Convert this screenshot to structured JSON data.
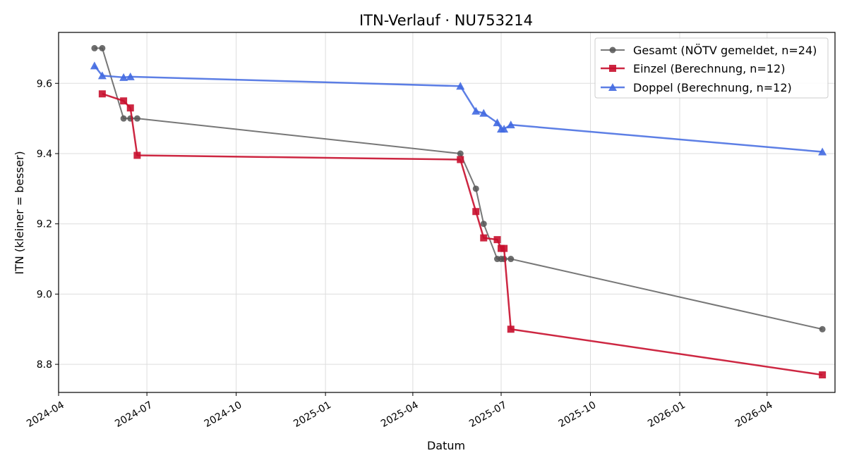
{
  "chart_data": {
    "type": "line",
    "title": "ITN-Verlauf · NU753214",
    "xlabel": "Datum",
    "ylabel": "ITN  (kleiner = besser)",
    "x_axis": "date",
    "xlim": [
      "2024-04-01",
      "2026-06-10"
    ],
    "ylim": [
      8.72,
      9.745
    ],
    "xticks": [
      "2024-04",
      "2024-07",
      "2024-10",
      "2025-01",
      "2025-04",
      "2025-07",
      "2025-10",
      "2026-01",
      "2026-04"
    ],
    "yticks": [
      8.8,
      9.0,
      9.2,
      9.4,
      9.6
    ],
    "yticks_labels": [
      "8.8",
      "9.0",
      "9.2",
      "9.4",
      "9.6"
    ],
    "grid": true,
    "legend_position": "top-right",
    "series": [
      {
        "name": "Gesamt (NÖTV gemeldet, n=24)",
        "color": "#555555",
        "marker": "circle",
        "points": [
          {
            "x": "2024-05-08",
            "y": 9.7
          },
          {
            "x": "2024-05-16",
            "y": 9.7
          },
          {
            "x": "2024-06-07",
            "y": 9.5
          },
          {
            "x": "2024-06-14",
            "y": 9.5
          },
          {
            "x": "2024-06-21",
            "y": 9.5
          },
          {
            "x": "2025-05-20",
            "y": 9.4
          },
          {
            "x": "2025-06-05",
            "y": 9.3
          },
          {
            "x": "2025-06-13",
            "y": 9.2
          },
          {
            "x": "2025-06-27",
            "y": 9.1
          },
          {
            "x": "2025-07-01",
            "y": 9.1
          },
          {
            "x": "2025-07-04",
            "y": 9.1
          },
          {
            "x": "2025-07-11",
            "y": 9.1
          },
          {
            "x": "2026-05-28",
            "y": 8.9
          }
        ]
      },
      {
        "name": "Einzel (Berechnung, n=12)",
        "color": "#c8102e",
        "marker": "square",
        "points": [
          {
            "x": "2024-05-16",
            "y": 9.57
          },
          {
            "x": "2024-06-07",
            "y": 9.55
          },
          {
            "x": "2024-06-14",
            "y": 9.53
          },
          {
            "x": "2024-06-21",
            "y": 9.395
          },
          {
            "x": "2025-05-20",
            "y": 9.383
          },
          {
            "x": "2025-06-05",
            "y": 9.235
          },
          {
            "x": "2025-06-13",
            "y": 9.16
          },
          {
            "x": "2025-06-27",
            "y": 9.155
          },
          {
            "x": "2025-07-01",
            "y": 9.13
          },
          {
            "x": "2025-07-04",
            "y": 9.13
          },
          {
            "x": "2025-07-11",
            "y": 8.9
          },
          {
            "x": "2026-05-28",
            "y": 8.77
          }
        ]
      },
      {
        "name": "Doppel (Berechnung, n=12)",
        "color": "#4169e1",
        "marker": "triangle",
        "points": [
          {
            "x": "2024-05-08",
            "y": 9.65
          },
          {
            "x": "2024-05-16",
            "y": 9.622
          },
          {
            "x": "2024-06-07",
            "y": 9.617
          },
          {
            "x": "2024-06-14",
            "y": 9.619
          },
          {
            "x": "2025-05-20",
            "y": 9.592
          },
          {
            "x": "2025-06-05",
            "y": 9.521
          },
          {
            "x": "2025-06-13",
            "y": 9.515
          },
          {
            "x": "2025-06-27",
            "y": 9.488
          },
          {
            "x": "2025-07-01",
            "y": 9.47
          },
          {
            "x": "2025-07-04",
            "y": 9.47
          },
          {
            "x": "2025-07-11",
            "y": 9.482
          },
          {
            "x": "2026-05-28",
            "y": 9.405
          }
        ]
      }
    ]
  }
}
